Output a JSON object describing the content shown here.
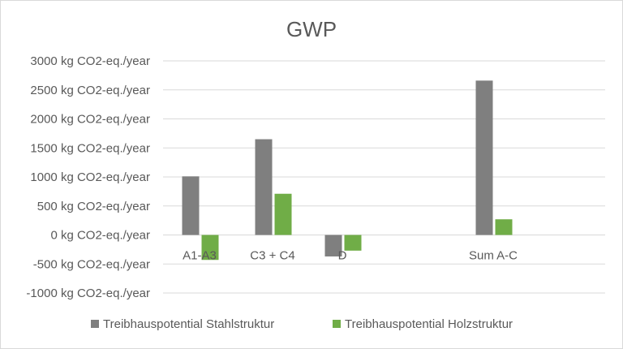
{
  "chart_data": {
    "type": "bar",
    "title": "GWP",
    "categories": [
      "A1-A3",
      "C3 + C4",
      "D",
      "Sum A-C"
    ],
    "series": [
      {
        "name": "Treibhauspotential Stahlstruktur",
        "values": [
          1010,
          1650,
          -370,
          2660
        ]
      },
      {
        "name": "Treibhauspotential Holzstruktur",
        "values": [
          -430,
          710,
          -270,
          270
        ]
      }
    ],
    "ylim": [
      -1000,
      3000
    ],
    "yticks": [
      3000,
      2500,
      2000,
      1500,
      1000,
      500,
      0,
      -500,
      -1000
    ],
    "ytick_labels": [
      "3000 kg CO2-eq./year",
      "2500 kg CO2-eq./year",
      "2000 kg CO2-eq./year",
      "1500 kg CO2-eq./year",
      "1000 kg CO2-eq./year",
      "500 kg CO2-eq./year",
      "0 kg CO2-eq./year",
      "-500 kg CO2-eq./year",
      "-1000 kg CO2-eq./year"
    ],
    "grid": true,
    "legend": "bottom",
    "colors": [
      "#7f7f7f",
      "#70ad47"
    ]
  }
}
